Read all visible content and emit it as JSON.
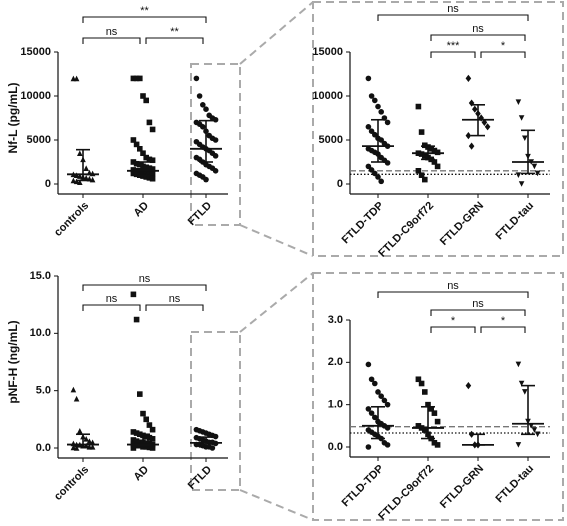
{
  "chart_data": [
    {
      "type": "dot",
      "ylabel": "Nf-L (pg/mL)",
      "ylim": [
        0,
        15000
      ],
      "yticks": [
        0,
        5000,
        10000,
        15000
      ],
      "groups": [
        {
          "name": "controls",
          "marker": "triangle",
          "values": [
            12000,
            12000,
            3500,
            2800,
            1800,
            1300,
            1200,
            1100,
            1000,
            900,
            800,
            700,
            600,
            500,
            400,
            300,
            200
          ],
          "median": 1100,
          "q1": 400,
          "q3": 3900
        },
        {
          "name": "AD",
          "marker": "square",
          "values": [
            12000,
            12000,
            12000,
            10000,
            9500,
            7000,
            6200,
            5000,
            4500,
            4000,
            3500,
            3000,
            2800,
            2700,
            2500,
            2300,
            2200,
            2000,
            1900,
            1800,
            1700,
            1600,
            1500,
            1500,
            1400,
            1400,
            1300,
            1200,
            1200,
            1100,
            1000,
            900,
            800,
            700,
            600
          ],
          "median": 1500,
          "q1": 1000,
          "q3": 2500
        },
        {
          "name": "FTLD",
          "marker": "circle",
          "values": [
            12000,
            10000,
            9000,
            8500,
            7800,
            7500,
            7300,
            7000,
            6800,
            6500,
            6000,
            5500,
            5200,
            5000,
            4800,
            4500,
            4200,
            4000,
            3800,
            3500,
            3200,
            3000,
            2800,
            2500,
            2200,
            2000,
            1800,
            1500,
            1200,
            1000,
            800,
            500
          ],
          "median": 4000,
          "q1": 2500,
          "q3": 7200
        }
      ],
      "brackets": [
        "**",
        "ns",
        "**"
      ]
    },
    {
      "type": "dot",
      "ylim": [
        0,
        15000
      ],
      "yticks": [
        0,
        5000,
        10000,
        15000
      ],
      "groups": [
        {
          "name": "FTLD-TDP",
          "marker": "circle",
          "values": [
            12000,
            10000,
            9500,
            8800,
            8200,
            7500,
            7000,
            6500,
            6000,
            5600,
            5200,
            5000,
            4600,
            4300,
            4000,
            3800,
            3600,
            3400,
            3000,
            2700,
            2400,
            2000,
            1600,
            1200,
            800,
            300
          ],
          "median": 4300,
          "q1": 2500,
          "q3": 7300
        },
        {
          "name": "FTLD-C9orf72",
          "marker": "square",
          "values": [
            8800,
            5900,
            4400,
            4200,
            4000,
            3800,
            3600,
            3500,
            3400,
            3200,
            3000,
            2800,
            2500,
            2000,
            1500,
            1000,
            500
          ],
          "median": 3500,
          "q1": 2800,
          "q3": 4300
        },
        {
          "name": "FTLD-GRN",
          "marker": "diamond",
          "values": [
            12000,
            9200,
            8500,
            8000,
            7500,
            7000,
            6500,
            5500,
            4300
          ],
          "median": 7300,
          "q1": 5500,
          "q3": 9000
        },
        {
          "name": "FTLD-tau",
          "marker": "triangle-down",
          "values": [
            9300,
            7500,
            5200,
            3100,
            2500,
            2000,
            1200,
            1000,
            0
          ],
          "median": 2500,
          "q1": 1200,
          "q3": 6100
        }
      ],
      "reference_lines": [
        {
          "value": 1500,
          "style": "dashed"
        },
        {
          "value": 1100,
          "style": "dotted"
        }
      ],
      "brackets": [
        "ns",
        "ns",
        "***",
        "*"
      ]
    },
    {
      "type": "dot",
      "ylabel": "pNF-H (ng/mL)",
      "ylim": [
        0,
        15
      ],
      "yticks": [
        {
          "value": 0,
          "label": "0.0"
        },
        {
          "value": 5,
          "label": "5.0"
        },
        {
          "value": 10,
          "label": "10.0"
        },
        {
          "value": 15,
          "label": "15.0"
        }
      ],
      "groups": [
        {
          "name": "controls",
          "marker": "triangle",
          "values": [
            5.1,
            4.3,
            1.5,
            1.0,
            0.8,
            0.6,
            0.5,
            0.4,
            0.3,
            0.3,
            0.2,
            0.2,
            0.1,
            0.1,
            0.05,
            0.0
          ],
          "median": 0.3,
          "q1": 0.1,
          "q3": 1.2
        },
        {
          "name": "AD",
          "marker": "square",
          "values": [
            13.4,
            11.2,
            4.7,
            3.0,
            2.5,
            2.0,
            1.6,
            1.4,
            1.3,
            1.2,
            1.1,
            1.0,
            0.9,
            0.8,
            0.7,
            0.6,
            0.5,
            0.5,
            0.4,
            0.4,
            0.3,
            0.3,
            0.2,
            0.2,
            0.1,
            0.1,
            0.05,
            0.0,
            0.0
          ],
          "median": 0.3,
          "q1": 0.1,
          "q3": 1.2
        },
        {
          "name": "FTLD",
          "marker": "circle",
          "values": [
            1.6,
            1.5,
            1.4,
            1.3,
            1.2,
            1.1,
            1.0,
            0.9,
            0.8,
            0.7,
            0.6,
            0.5,
            0.5,
            0.4,
            0.3,
            0.3,
            0.2,
            0.1,
            0.1,
            0.0
          ],
          "median": 0.45,
          "q1": 0.1,
          "q3": 0.95
        }
      ],
      "brackets": [
        "ns",
        "ns",
        "ns"
      ]
    },
    {
      "type": "dot",
      "ylim": [
        0,
        3
      ],
      "yticks": [
        {
          "value": 0,
          "label": "0.0"
        },
        {
          "value": 1,
          "label": "1.0"
        },
        {
          "value": 2,
          "label": "2.0"
        },
        {
          "value": 3,
          "label": "3.0"
        }
      ],
      "groups": [
        {
          "name": "FTLD-TDP",
          "marker": "circle",
          "values": [
            1.95,
            1.6,
            1.5,
            1.3,
            1.2,
            1.1,
            1.0,
            0.9,
            0.8,
            0.7,
            0.6,
            0.55,
            0.5,
            0.45,
            0.4,
            0.35,
            0.3,
            0.25,
            0.2,
            0.1,
            0.05,
            0.0
          ],
          "median": 0.5,
          "q1": 0.2,
          "q3": 0.95
        },
        {
          "name": "FTLD-C9orf72",
          "marker": "square",
          "values": [
            1.6,
            1.5,
            1.3,
            1.0,
            0.9,
            0.8,
            0.6,
            0.5,
            0.45,
            0.4,
            0.3,
            0.2,
            0.1,
            0.05
          ],
          "median": 0.45,
          "q1": 0.2,
          "q3": 0.95
        },
        {
          "name": "FTLD-GRN",
          "marker": "diamond",
          "values": [
            1.45,
            0.3,
            0.05,
            0.05
          ],
          "median": 0.05,
          "q1": 0.05,
          "q3": 0.3
        },
        {
          "name": "FTLD-tau",
          "marker": "triangle-down",
          "values": [
            1.95,
            1.5,
            1.3,
            0.6,
            0.5,
            0.4,
            0.3,
            0.05
          ],
          "median": 0.55,
          "q1": 0.3,
          "q3": 1.45
        }
      ],
      "reference_lines": [
        {
          "value": 0.48,
          "style": "dashed"
        },
        {
          "value": 0.33,
          "style": "dotted"
        }
      ],
      "brackets": [
        "ns",
        "ns",
        "*",
        "*"
      ]
    }
  ]
}
